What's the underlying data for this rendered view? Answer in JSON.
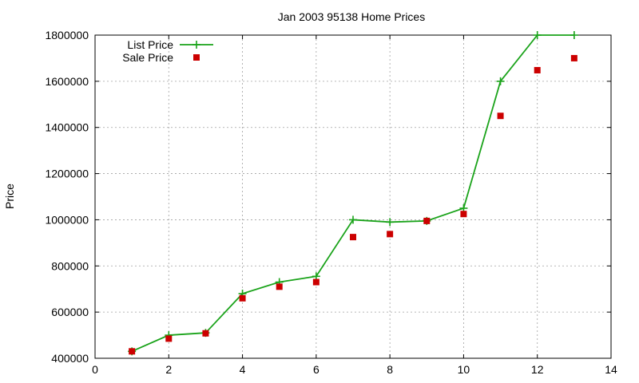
{
  "chart_data": {
    "type": "line",
    "title": "Jan 2003 95138 Home Prices",
    "xlabel": "",
    "ylabel": "Price",
    "xlim": [
      0,
      14
    ],
    "ylim": [
      400000,
      1800000
    ],
    "x_ticks": [
      0,
      2,
      4,
      6,
      8,
      10,
      12,
      14
    ],
    "y_ticks": [
      400000,
      600000,
      800000,
      1000000,
      1200000,
      1400000,
      1600000,
      1800000
    ],
    "grid": true,
    "legend_position": "top-left",
    "series": [
      {
        "name": "List Price",
        "style": "line-plus",
        "color": "#1aa31a",
        "x": [
          1,
          2,
          3,
          4,
          5,
          6,
          7,
          8,
          9,
          10,
          11,
          12,
          13
        ],
        "y": [
          430000,
          500000,
          510000,
          680000,
          730000,
          755000,
          1000000,
          990000,
          995000,
          1050000,
          1600000,
          1800000,
          1800000
        ]
      },
      {
        "name": "Sale Price",
        "style": "square-points",
        "color": "#cc0000",
        "x": [
          1,
          2,
          3,
          4,
          5,
          6,
          7,
          8,
          9,
          10,
          11,
          12,
          13
        ],
        "y": [
          430000,
          485000,
          508000,
          660000,
          710000,
          730000,
          925000,
          938000,
          995000,
          1025000,
          1450000,
          1648000,
          1700000
        ]
      }
    ]
  }
}
